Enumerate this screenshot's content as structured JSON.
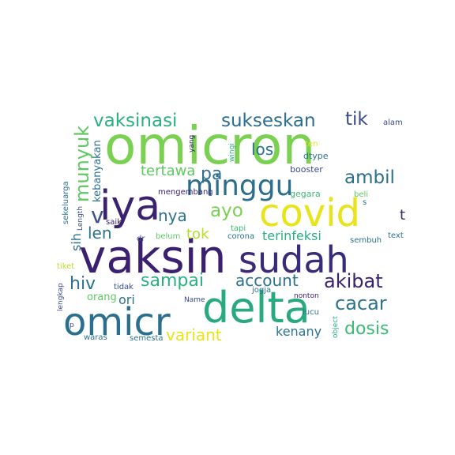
{
  "words": [
    {
      "t": "omicron",
      "c": "#7ad151"
    },
    {
      "t": "vaksin",
      "c": "#3b1f70"
    },
    {
      "t": "sudah",
      "c": "#3a2a7a"
    },
    {
      "t": "delta",
      "c": "#29a97e"
    },
    {
      "t": "covid",
      "c": "#e8e419"
    },
    {
      "t": "omicr",
      "c": "#2a6f8e"
    },
    {
      "t": "iya",
      "c": "#3b2270"
    },
    {
      "t": "minggu",
      "c": "#2c6e8e"
    },
    {
      "t": "vaksinasi",
      "c": "#2ab07f"
    },
    {
      "t": "sukseskan",
      "c": "#2c6e8e"
    },
    {
      "t": "tik",
      "c": "#3a4a8c"
    },
    {
      "t": "munyuk",
      "c": "#5ec962"
    },
    {
      "t": "ambil",
      "c": "#2c6e8e"
    },
    {
      "t": "tertawa",
      "c": "#5ec962"
    },
    {
      "t": "pa",
      "c": "#2c728e"
    },
    {
      "t": "los",
      "c": "#2c728e"
    },
    {
      "t": "ayo",
      "c": "#7ad151"
    },
    {
      "t": "nya",
      "c": "#2c728e"
    },
    {
      "t": "v",
      "c": "#3b528b"
    },
    {
      "t": "t",
      "c": "#3b2270"
    },
    {
      "t": "len",
      "c": "#2c728e"
    },
    {
      "t": "tok",
      "c": "#b5de2b"
    },
    {
      "t": "sih",
      "c": "#2c728e"
    },
    {
      "t": "hiv",
      "c": "#2c728e"
    },
    {
      "t": "sampai",
      "c": "#2ab07f"
    },
    {
      "t": "account",
      "c": "#2c728e"
    },
    {
      "t": "akibat",
      "c": "#3b2270"
    },
    {
      "t": "ori",
      "c": "#2c728e"
    },
    {
      "t": "cacar",
      "c": "#2c728e"
    },
    {
      "t": "variant",
      "c": "#e8e419"
    },
    {
      "t": "dosis",
      "c": "#3bbb75"
    },
    {
      "t": "kenany",
      "c": "#2c728e"
    },
    {
      "t": "terinfeksi",
      "c": "#2ab07f"
    },
    {
      "t": "orang",
      "c": "#5ec962"
    },
    {
      "t": "kebanyakan",
      "c": "#2c728e"
    },
    {
      "t": "mengembang",
      "c": "#3b2270"
    },
    {
      "t": "booster",
      "c": "#3a4a8c"
    },
    {
      "t": "ten",
      "c": "#e8e419"
    },
    {
      "t": "dtype",
      "c": "#2c728e"
    },
    {
      "t": "alam",
      "c": "#3a4a8c"
    },
    {
      "t": "yang",
      "c": "#3b2270"
    },
    {
      "t": "wingi",
      "c": "#2ab07f"
    },
    {
      "t": "gegara",
      "c": "#3bbb75"
    },
    {
      "t": "beli",
      "c": "#5ec962"
    },
    {
      "t": "s",
      "c": "#2c728e"
    },
    {
      "t": "sekeluarga",
      "c": "#2c728e"
    },
    {
      "t": "Length",
      "c": "#3a4a8c"
    },
    {
      "t": "saiki",
      "c": "#3b2270"
    },
    {
      "t": "dr",
      "c": "#3a4a8c"
    },
    {
      "t": "belum",
      "c": "#5ec962"
    },
    {
      "t": "tapi",
      "c": "#3bbb75"
    },
    {
      "t": "corona",
      "c": "#2c728e"
    },
    {
      "t": "sembuh",
      "c": "#2c728e"
    },
    {
      "t": "text",
      "c": "#2c728e"
    },
    {
      "t": "tiket",
      "c": "#b5de2b"
    },
    {
      "t": "lengkap",
      "c": "#3a4a8c"
    },
    {
      "t": "tidak",
      "c": "#3a4a8c"
    },
    {
      "t": "Name",
      "c": "#3a4a8c"
    },
    {
      "t": "jogja",
      "c": "#2c728e"
    },
    {
      "t": "nonton",
      "c": "#3b2270"
    },
    {
      "t": "lucu",
      "c": "#2c728e"
    },
    {
      "t": "object",
      "c": "#2ab07f"
    },
    {
      "t": "p",
      "c": "#3a4a8c"
    },
    {
      "t": "waras",
      "c": "#2c728e"
    },
    {
      "t": "semesta",
      "c": "#2c728e"
    }
  ]
}
